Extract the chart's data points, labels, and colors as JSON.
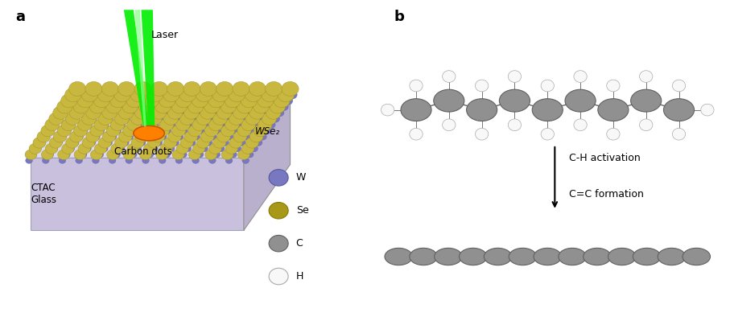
{
  "panel_a_label": "a",
  "panel_b_label": "b",
  "laser_label": "Laser",
  "carbon_dots_label": "Carbon dots",
  "ctac_glass_label": "CTAC\nGlass",
  "wse2_label": "WSe₂",
  "legend_items": [
    {
      "label": "W",
      "color": "#7878C0",
      "ec": "#5858A0"
    },
    {
      "label": "Se",
      "color": "#A89818",
      "ec": "#887800"
    },
    {
      "label": "C",
      "color": "#909090",
      "ec": "#606060"
    },
    {
      "label": "H",
      "color": "#F8F8F8",
      "ec": "#AAAAAA"
    }
  ],
  "arrow_label1": "C-H activation",
  "arrow_label2": "C=C formation",
  "background_color": "#FFFFFF",
  "w_color": "#7878C0",
  "w_ec": "#5858A0",
  "se_color": "#C8B840",
  "se_ec": "#A09020",
  "c_color": "#909090",
  "c_ec": "#606060",
  "h_color": "#F8F8F8",
  "h_ec": "#AAAAAA",
  "orange_spot_color": "#FF8000",
  "orange_spot_ec": "#CC5500",
  "platform_top": "#E0DCF0",
  "platform_front": "#C8C0DC",
  "platform_right": "#B8B0CC",
  "platform_bottom_ext": "#D0CCDC",
  "laser_green": "#00EE00",
  "laser_green_light": "#88FF88"
}
